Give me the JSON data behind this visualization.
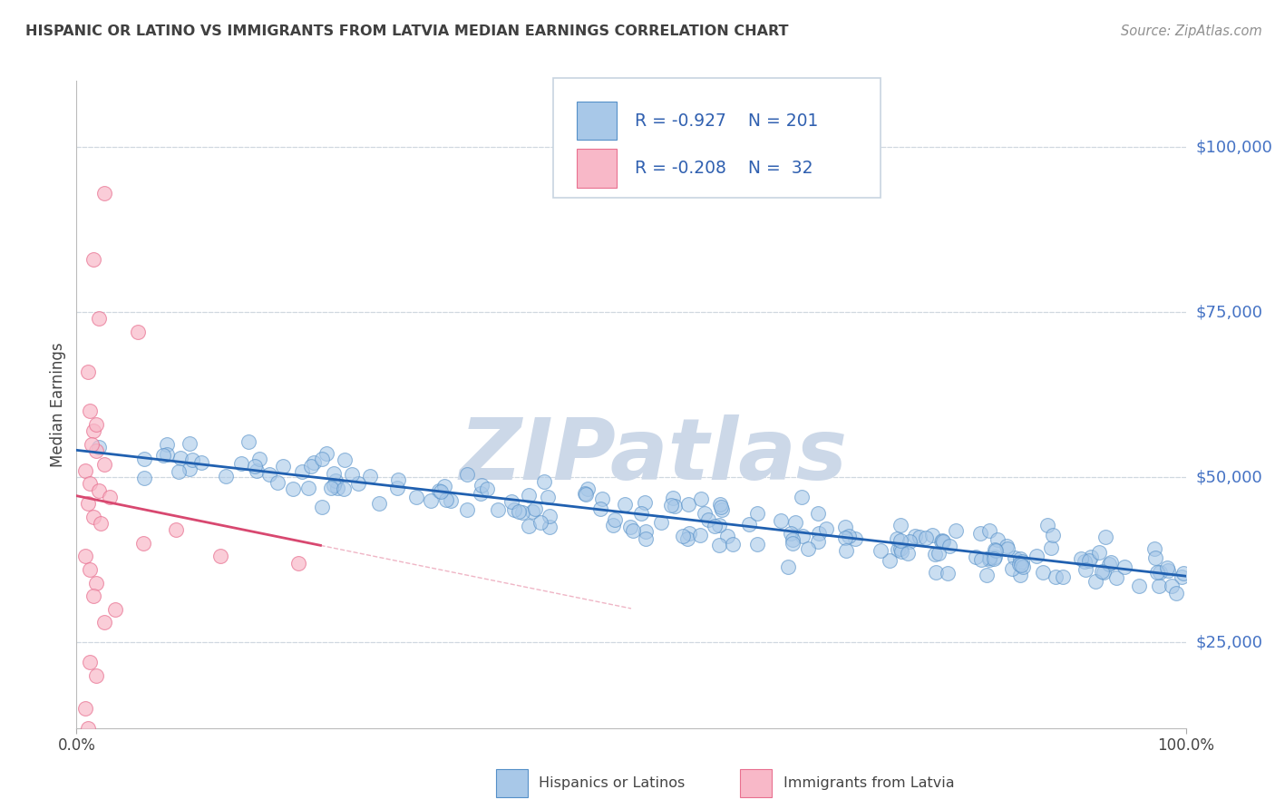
{
  "title": "HISPANIC OR LATINO VS IMMIGRANTS FROM LATVIA MEDIAN EARNINGS CORRELATION CHART",
  "source": "Source: ZipAtlas.com",
  "ylabel": "Median Earnings",
  "watermark": "ZIPatlas",
  "xlim": [
    0,
    1.0
  ],
  "ylim": [
    12000,
    110000
  ],
  "yticks": [
    25000,
    50000,
    75000,
    100000
  ],
  "ytick_labels": [
    "$25,000",
    "$50,000",
    "$75,000",
    "$100,000"
  ],
  "blue_R": -0.927,
  "blue_N": 201,
  "pink_R": -0.208,
  "pink_N": 32,
  "blue_color": "#a8c8e8",
  "pink_color": "#f8b8c8",
  "blue_edge_color": "#5590c8",
  "pink_edge_color": "#e87090",
  "blue_line_color": "#2060b0",
  "pink_line_color": "#d84870",
  "title_color": "#404040",
  "axis_label_color": "#4472c4",
  "grid_color": "#d0d8e0",
  "background_color": "#ffffff",
  "watermark_color": "#ccd8e8",
  "legend_text_color": "#3060b0",
  "source_color": "#909090"
}
